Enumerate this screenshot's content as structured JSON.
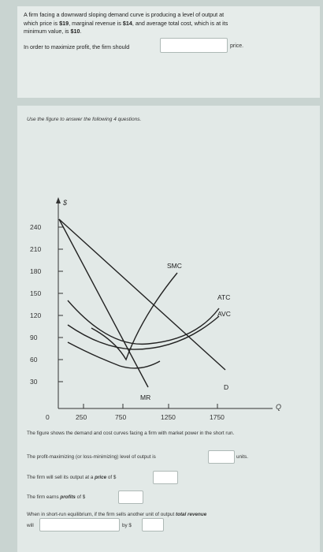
{
  "question1": {
    "line1_a": "A firm facing a downward sloping demand curve is producing a level of output at",
    "line2_a": "which price is ",
    "line2_price": "$19",
    "line2_b": ", marginal revenue is ",
    "line2_mr": "$14",
    "line2_c": ", and average total cost, which is at its",
    "line3_a": "minimum value, is ",
    "line3_atc": "$10",
    "line3_b": ".",
    "prompt": "In order to maximize profit, the firm should",
    "suffix": "price."
  },
  "instructions": "Use the figure to answer the following 4 questions.",
  "chart_data": {
    "type": "line",
    "ylabel": "$",
    "xlabel": "Q",
    "yticks": [
      240,
      210,
      180,
      150,
      120,
      90,
      60,
      30
    ],
    "xticks": [
      "0",
      "250",
      "750",
      "1250",
      "1750"
    ],
    "curve_labels": {
      "smc": "SMC",
      "atc": "ATC",
      "avc": "AVC",
      "d": "D",
      "mr": "MR"
    }
  },
  "caption": "The figure shows the demand and cost curves facing a firm with market power in the short run.",
  "q_output": {
    "prefix": "The profit-maximizing (or loss-minimizing) level of output is",
    "suffix": "units."
  },
  "q_price": {
    "prefix": "The firm will sell its output at a ",
    "emph": "price",
    "suffix": " of $"
  },
  "q_profit": {
    "prefix": "The firm earns ",
    "emph": "profits",
    "suffix": " of $"
  },
  "q_revenue": {
    "line1_prefix": "When in short-run equilibrium, if the firm sells another unit of output ",
    "line1_emph": "total revenue",
    "line2_prefix": "will",
    "line2_suffix": "by $"
  }
}
